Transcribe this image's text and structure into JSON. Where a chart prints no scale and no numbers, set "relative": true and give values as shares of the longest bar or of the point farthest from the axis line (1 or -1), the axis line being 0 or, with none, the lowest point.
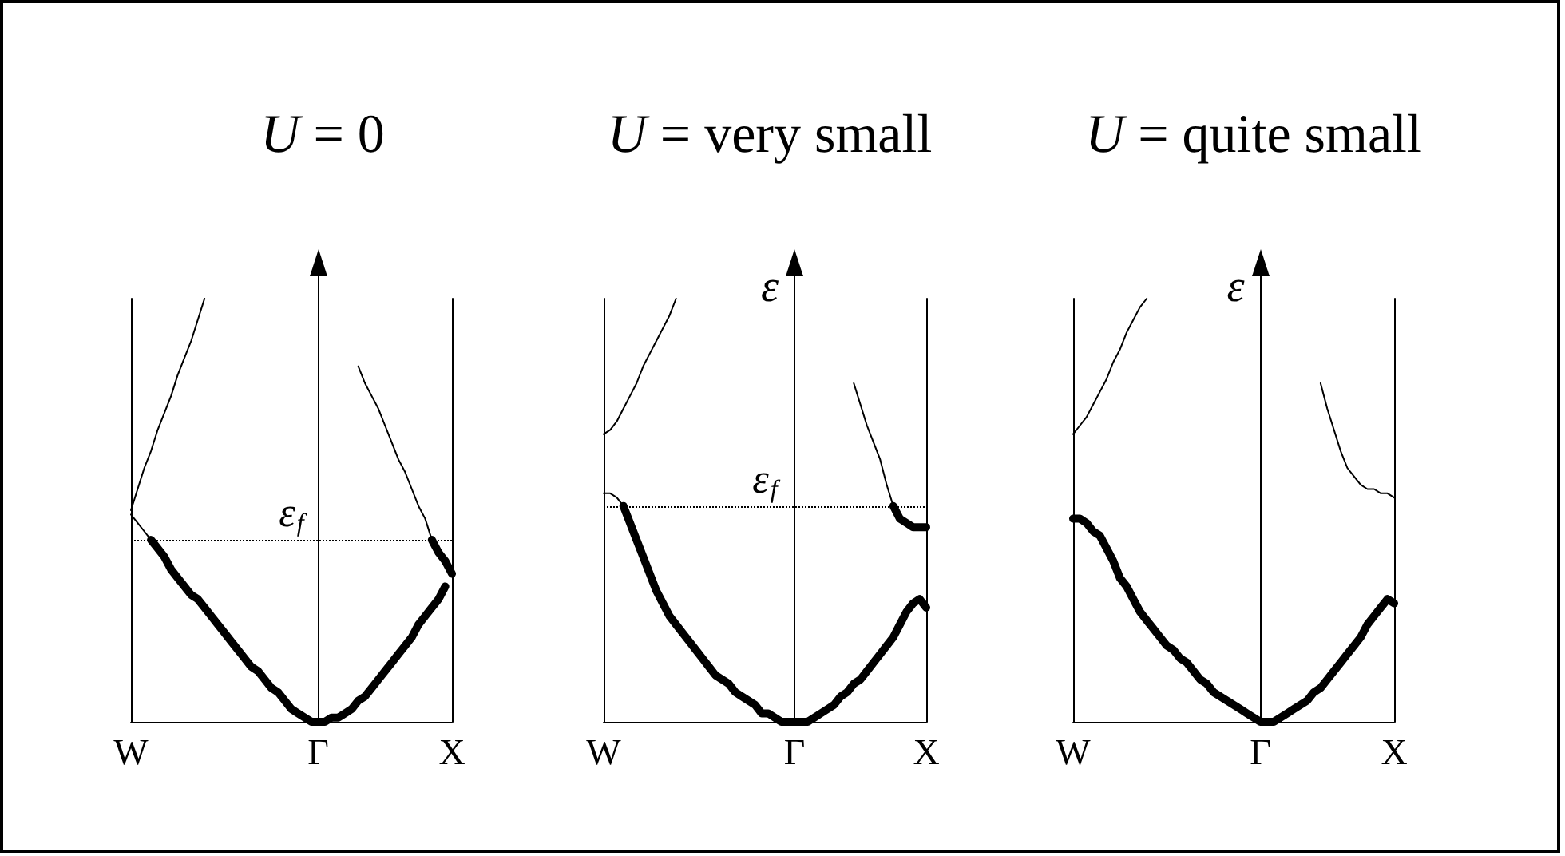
{
  "chart_data": [
    {
      "type": "line",
      "title": "U = 0",
      "relative": true,
      "categories": [
        "W",
        null,
        null,
        null,
        null,
        null,
        null,
        null,
        null,
        null,
        null,
        null,
        null,
        null,
        null,
        null,
        null,
        null,
        null,
        null,
        null,
        null,
        null,
        null,
        null,
        null,
        null,
        null,
        "Γ",
        null,
        null,
        null,
        null,
        null,
        null,
        null,
        null,
        null,
        null,
        null,
        null,
        null,
        null,
        null,
        null,
        null,
        null,
        null,
        "X"
      ],
      "ref_lines": [
        {
          "axis": "y",
          "value": 0.43,
          "label": "ε$_{f}$",
          "color": "#000000",
          "line_style": "dotted"
        },
        {
          "axis": "x",
          "value": "Γ",
          "color": "#000000"
        }
      ],
      "series": [
        {
          "color": "#000000",
          "values": [
            0.5,
            0.55,
            0.6,
            0.64,
            0.69,
            0.73,
            0.77,
            0.82,
            0.86,
            0.9,
            0.95,
            1.0,
            null,
            null,
            null,
            null,
            null,
            null,
            null,
            null,
            null,
            null,
            null,
            null,
            null,
            null,
            null,
            null,
            null,
            null,
            null,
            null,
            null,
            null,
            null,
            null,
            null,
            null,
            null,
            null,
            null,
            null,
            null,
            null,
            null,
            null,
            null,
            null,
            null
          ]
        },
        {
          "color": "#000000",
          "values": [
            0.49,
            0.47,
            0.45,
            0.43,
            null,
            null,
            null,
            null,
            null,
            null,
            null,
            null,
            null,
            null,
            null,
            null,
            null,
            null,
            null,
            null,
            null,
            null,
            null,
            null,
            null,
            null,
            null,
            null,
            null,
            null,
            null,
            null,
            null,
            null,
            null,
            null,
            null,
            null,
            null,
            null,
            null,
            null,
            null,
            null,
            null,
            null,
            null,
            null,
            null
          ]
        },
        {
          "color": "#000000",
          "values": [
            null,
            null,
            null,
            0.43,
            0.41,
            0.39,
            0.36,
            0.34,
            0.32,
            0.3,
            0.29,
            0.27,
            0.25,
            0.23,
            0.21,
            0.19,
            0.17,
            0.15,
            0.13,
            0.12,
            0.1,
            0.08,
            0.07,
            0.05,
            0.03,
            0.02,
            0.01,
            0,
            0,
            0,
            0.01,
            0.01,
            0.02,
            0.03,
            0.05,
            0.06,
            0.08,
            0.1,
            0.12,
            0.14,
            0.16,
            0.18,
            0.2,
            0.23,
            0.25,
            0.27,
            0.29,
            0.32,
            null
          ]
        },
        {
          "color": "#000000",
          "values": [
            null,
            null,
            null,
            null,
            null,
            null,
            null,
            null,
            null,
            null,
            null,
            null,
            null,
            null,
            null,
            null,
            null,
            null,
            null,
            null,
            null,
            null,
            null,
            null,
            null,
            null,
            null,
            null,
            null,
            null,
            null,
            null,
            null,
            null,
            0.84,
            0.8,
            0.77,
            0.74,
            0.7,
            0.66,
            0.62,
            0.59,
            0.55,
            0.51,
            0.48,
            0.43,
            null,
            null,
            null
          ]
        },
        {
          "color": "#000000",
          "values": [
            null,
            null,
            null,
            null,
            null,
            null,
            null,
            null,
            null,
            null,
            null,
            null,
            null,
            null,
            null,
            null,
            null,
            null,
            null,
            null,
            null,
            null,
            null,
            null,
            null,
            null,
            null,
            null,
            null,
            null,
            null,
            null,
            null,
            null,
            null,
            null,
            null,
            null,
            null,
            null,
            null,
            null,
            null,
            null,
            null,
            0.43,
            0.4,
            0.38,
            0.35
          ]
        }
      ]
    },
    {
      "type": "line",
      "title": "U = very small",
      "ylabel": "ε",
      "relative": true,
      "categories": [
        "W",
        null,
        null,
        null,
        null,
        null,
        null,
        null,
        null,
        null,
        null,
        null,
        null,
        null,
        null,
        null,
        null,
        null,
        null,
        null,
        null,
        null,
        null,
        null,
        null,
        null,
        null,
        null,
        null,
        "Γ",
        null,
        null,
        null,
        null,
        null,
        null,
        null,
        null,
        null,
        null,
        null,
        null,
        null,
        null,
        null,
        null,
        null,
        null,
        null,
        "X"
      ],
      "ref_lines": [
        {
          "axis": "y",
          "value": 0.51,
          "label": "ε$_{f}$",
          "color": "#000000",
          "line_style": "dotted"
        },
        {
          "axis": "x",
          "value": "Γ",
          "color": "#000000"
        }
      ],
      "series": [
        {
          "color": "#000000",
          "values": [
            0.68,
            0.69,
            0.71,
            0.74,
            0.77,
            0.8,
            0.84,
            0.87,
            0.9,
            0.93,
            0.96,
            1.0,
            null,
            null,
            null,
            null,
            null,
            null,
            null,
            null,
            null,
            null,
            null,
            null,
            null,
            null,
            null,
            null,
            null,
            null,
            null,
            null,
            null,
            null,
            null,
            null,
            null,
            null,
            null,
            null,
            null,
            null,
            null,
            null,
            null,
            null,
            null,
            null,
            null,
            null
          ]
        },
        {
          "color": "#000000",
          "values": [
            0.54,
            0.54,
            0.53,
            0.51,
            null,
            null,
            null,
            null,
            null,
            null,
            null,
            null,
            null,
            null,
            null,
            null,
            null,
            null,
            null,
            null,
            null,
            null,
            null,
            null,
            null,
            null,
            null,
            null,
            null,
            null,
            null,
            null,
            null,
            null,
            null,
            null,
            null,
            null,
            null,
            null,
            null,
            null,
            null,
            null,
            null,
            null,
            null,
            null,
            null,
            null
          ]
        },
        {
          "color": "#000000",
          "values": [
            null,
            null,
            null,
            0.51,
            0.47,
            0.43,
            0.39,
            0.35,
            0.31,
            0.28,
            0.25,
            0.23,
            0.21,
            0.19,
            0.17,
            0.15,
            0.13,
            0.11,
            0.1,
            0.09,
            0.07,
            0.06,
            0.05,
            0.04,
            0.02,
            0.02,
            0.01,
            0,
            0,
            0,
            0,
            0,
            0.01,
            0.02,
            0.03,
            0.04,
            0.06,
            0.07,
            0.09,
            0.1,
            0.12,
            0.14,
            0.16,
            0.18,
            0.2,
            0.23,
            0.26,
            0.28,
            0.29,
            0.27
          ]
        },
        {
          "color": "#000000",
          "values": [
            null,
            null,
            null,
            null,
            null,
            null,
            null,
            null,
            null,
            null,
            null,
            null,
            null,
            null,
            null,
            null,
            null,
            null,
            null,
            null,
            null,
            null,
            null,
            null,
            null,
            null,
            null,
            null,
            null,
            null,
            null,
            null,
            null,
            null,
            null,
            null,
            null,
            null,
            0.8,
            0.75,
            0.7,
            0.66,
            0.62,
            0.56,
            0.51,
            null,
            null,
            null,
            null,
            null
          ]
        },
        {
          "color": "#000000",
          "values": [
            null,
            null,
            null,
            null,
            null,
            null,
            null,
            null,
            null,
            null,
            null,
            null,
            null,
            null,
            null,
            null,
            null,
            null,
            null,
            null,
            null,
            null,
            null,
            null,
            null,
            null,
            null,
            null,
            null,
            null,
            null,
            null,
            null,
            null,
            null,
            null,
            null,
            null,
            null,
            null,
            null,
            null,
            null,
            null,
            0.51,
            0.48,
            0.47,
            0.46,
            0.46,
            0.46
          ]
        }
      ]
    },
    {
      "type": "line",
      "title": "U = quite small",
      "ylabel": "ε",
      "relative": true,
      "categories": [
        "W",
        null,
        null,
        null,
        null,
        null,
        null,
        null,
        null,
        null,
        null,
        null,
        null,
        null,
        null,
        null,
        null,
        null,
        null,
        null,
        null,
        null,
        null,
        null,
        null,
        null,
        null,
        null,
        "Γ",
        null,
        null,
        null,
        null,
        null,
        null,
        null,
        null,
        null,
        null,
        null,
        null,
        null,
        null,
        null,
        null,
        null,
        null,
        null,
        "X"
      ],
      "ref_lines": [
        {
          "axis": "x",
          "value": "Γ",
          "color": "#000000"
        }
      ],
      "series": [
        {
          "color": "#000000",
          "values": [
            0.68,
            0.7,
            0.72,
            0.75,
            0.78,
            0.81,
            0.85,
            0.88,
            0.92,
            0.95,
            0.98,
            1.0,
            null,
            null,
            null,
            null,
            null,
            null,
            null,
            null,
            null,
            null,
            null,
            null,
            null,
            null,
            null,
            null,
            null,
            null,
            null,
            null,
            null,
            null,
            null,
            null,
            null,
            null,
            null,
            null,
            null,
            null,
            null,
            null,
            null,
            null,
            null,
            null,
            null
          ]
        },
        {
          "color": "#000000",
          "values": [
            null,
            null,
            null,
            null,
            null,
            null,
            null,
            null,
            null,
            null,
            null,
            null,
            null,
            null,
            null,
            null,
            null,
            null,
            null,
            null,
            null,
            null,
            null,
            null,
            null,
            null,
            null,
            null,
            null,
            null,
            null,
            null,
            null,
            null,
            null,
            null,
            null,
            0.8,
            0.74,
            0.69,
            0.64,
            0.6,
            0.58,
            0.56,
            0.55,
            0.55,
            0.54,
            0.54,
            0.53
          ]
        },
        {
          "color": "#000000",
          "values": [
            0.48,
            0.48,
            0.47,
            0.45,
            0.44,
            0.41,
            0.38,
            0.34,
            0.32,
            0.29,
            0.26,
            0.24,
            0.22,
            0.2,
            0.18,
            0.17,
            0.15,
            0.14,
            0.12,
            0.1,
            0.09,
            0.07,
            0.06,
            0.05,
            0.04,
            0.03,
            0.02,
            0.01,
            0,
            0,
            0,
            0.01,
            0.02,
            0.03,
            0.04,
            0.05,
            0.07,
            0.08,
            0.1,
            0.12,
            0.14,
            0.16,
            0.18,
            0.2,
            0.23,
            0.25,
            0.27,
            0.29,
            0.28
          ]
        }
      ]
    }
  ]
}
